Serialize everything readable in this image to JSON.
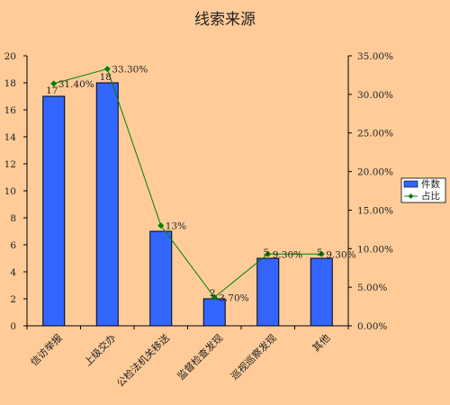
{
  "chart_data": {
    "type": "bar",
    "title": "线索来源",
    "categories": [
      "信访举报",
      "上级交办",
      "公检法机关移送",
      "监督检查发现",
      "巡视巡察发现",
      "其他"
    ],
    "series": [
      {
        "name": "件数",
        "type": "bar",
        "axis": "left",
        "values": [
          17,
          18,
          7,
          2,
          5,
          5
        ],
        "labels": [
          "17",
          "18",
          "",
          "2",
          "5",
          "5"
        ],
        "color": "#3366FF"
      },
      {
        "name": "占比",
        "type": "line",
        "axis": "right",
        "values": [
          31.4,
          33.3,
          13.0,
          3.7,
          9.3,
          9.3
        ],
        "labels": [
          "31.40%",
          "33.30%",
          "13%",
          "3.70%",
          "9.30%",
          "9.30%"
        ],
        "color": "#008000"
      }
    ],
    "y_left": {
      "lim": [
        0,
        20
      ],
      "ticks": [
        "0",
        "2",
        "4",
        "6",
        "8",
        "10",
        "12",
        "14",
        "16",
        "18",
        "20"
      ]
    },
    "y_right": {
      "lim": [
        0,
        35
      ],
      "ticks": [
        "0.00%",
        "5.00%",
        "10.00%",
        "15.00%",
        "20.00%",
        "25.00%",
        "30.00%",
        "35.00%"
      ]
    },
    "grid": false,
    "legend": "right"
  }
}
